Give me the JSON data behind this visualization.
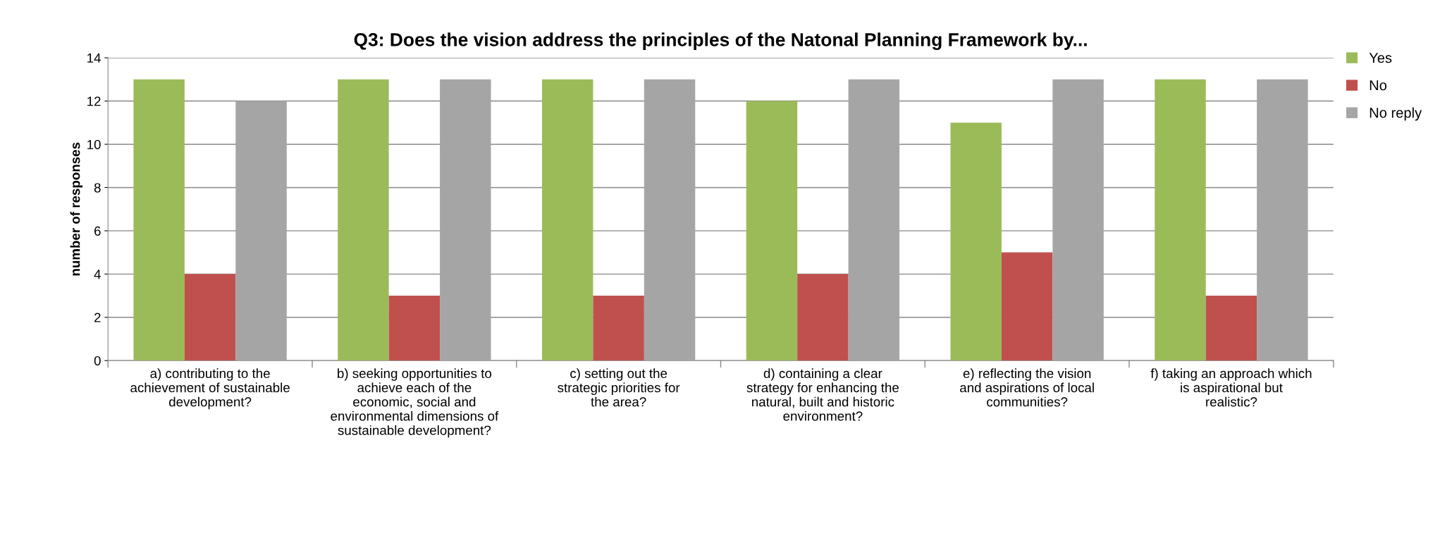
{
  "chart_data": {
    "type": "bar",
    "title": "Q3: Does the vision address the principles of the Natonal Planning Framework by...",
    "ylabel": "number of responses",
    "categories": [
      "a) contributing to the achievement of sustainable development?",
      "b) seeking opportunities to achieve each of the economic, social and environmental dimensions of sustainable development?",
      "c) setting out the strategic priorities for the area?",
      "d) containing a clear strategy for enhancing the natural, built and historic environment?",
      "e) reflecting the vision and aspirations of local communities?",
      "f) taking an approach which is aspirational but realistic?"
    ],
    "series": [
      {
        "name": "Yes",
        "color": "#9bbb59",
        "values": [
          13,
          13,
          13,
          12,
          11,
          13
        ]
      },
      {
        "name": "No",
        "color": "#c0504d",
        "values": [
          4,
          3,
          3,
          4,
          5,
          3
        ]
      },
      {
        "name": "No reply",
        "color": "#a5a5a5",
        "values": [
          12,
          13,
          13,
          13,
          13,
          13
        ]
      }
    ],
    "ylim": [
      0,
      14
    ],
    "yticks": [
      0,
      2,
      4,
      6,
      8,
      10,
      12,
      14
    ],
    "grid": "y",
    "legend": "top right"
  }
}
